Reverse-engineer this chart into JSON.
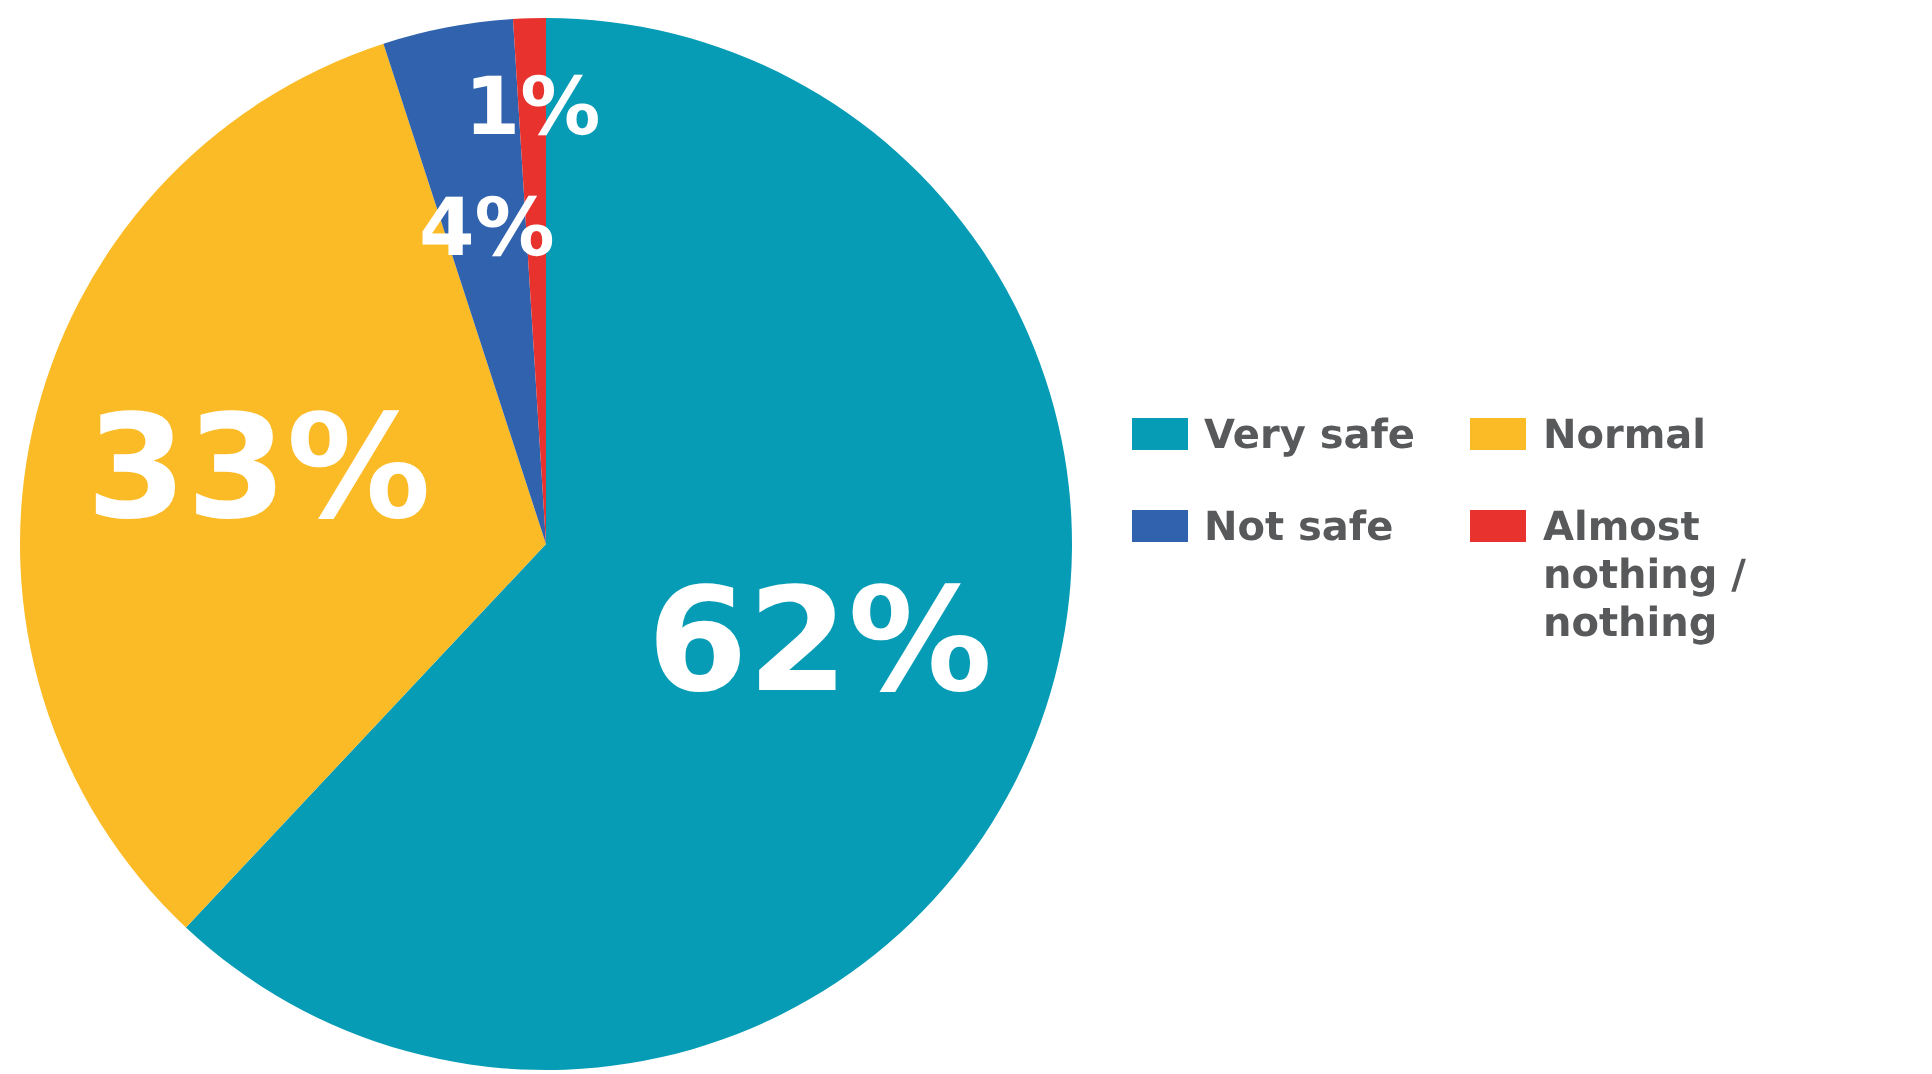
{
  "chart_data": {
    "type": "pie",
    "categories": [
      "Very safe",
      "Normal",
      "Not safe",
      "Almost nothing / nothing"
    ],
    "values": [
      62,
      33,
      4,
      1
    ],
    "colors": [
      "#069cb5",
      "#fbbb27",
      "#3062ad",
      "#e8322e"
    ],
    "value_labels": [
      "62%",
      "33%",
      "4%",
      "1%"
    ],
    "legend": "right"
  }
}
